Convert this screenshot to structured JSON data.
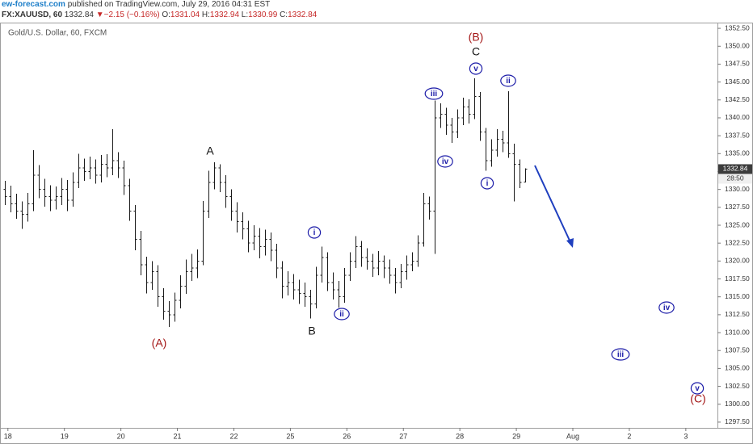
{
  "chart_data": {
    "type": "ohlc",
    "title": "Gold/U.S. Dollar, 60, FXCM",
    "publisher": "ew-forecast.com",
    "published": "published on TradingView.com, July 29, 2016 04:31 EST",
    "symbol": "FX:XAUUSD, 60",
    "change": "−2.15 (−0.16%)",
    "ohlc_labels": [
      "O:",
      "H:",
      "L:",
      "C:"
    ],
    "countdown": "28:50",
    "color": "#1a1a1a",
    "x": [
      -0.05,
      0.05,
      0.15,
      0.25,
      0.35,
      0.45,
      0.55,
      0.65,
      0.75,
      0.85,
      0.95,
      1.05,
      1.15,
      1.25,
      1.35,
      1.45,
      1.55,
      1.65,
      1.75,
      1.85,
      1.95,
      2.05,
      2.15,
      2.25,
      2.35,
      2.45,
      2.55,
      2.65,
      2.75,
      2.85,
      2.95,
      3.05,
      3.15,
      3.25,
      3.35,
      3.45,
      3.55,
      3.65,
      3.75,
      3.85,
      3.95,
      4.05,
      4.15,
      4.25,
      4.35,
      4.45,
      4.55,
      4.65,
      4.75,
      4.85,
      4.95,
      5.05,
      5.15,
      5.25,
      5.35,
      5.45,
      5.55,
      5.65,
      5.75,
      5.85,
      5.95,
      6.05,
      6.15,
      6.25,
      6.35,
      6.45,
      6.55,
      6.65,
      6.75,
      6.85,
      6.95,
      7.05,
      7.15,
      7.25,
      7.35,
      7.45,
      7.55,
      7.65,
      7.75,
      7.85,
      7.95,
      8.05,
      8.15,
      8.25,
      8.35,
      8.45,
      8.55,
      8.65,
      8.75,
      8.85,
      8.95,
      9.05,
      9.15
    ],
    "open": [
      1330,
      1329,
      1328,
      1327,
      1326.5,
      1328,
      1332,
      1330,
      1329,
      1328.5,
      1329,
      1330,
      1328.5,
      1331,
      1333,
      1332.5,
      1333,
      1332,
      1333.5,
      1333,
      1334,
      1333,
      1330.5,
      1327,
      1323,
      1319.5,
      1317,
      1318.5,
      1315,
      1313,
      1312.5,
      1314.5,
      1316.5,
      1318.5,
      1319,
      1320,
      1327,
      1331,
      1333,
      1331,
      1329,
      1327,
      1325.5,
      1324.5,
      1322.5,
      1323.5,
      1322,
      1323,
      1321.5,
      1319,
      1316.5,
      1317,
      1316,
      1315.5,
      1315,
      1314,
      1318,
      1320.5,
      1317,
      1316,
      1315,
      1318,
      1320,
      1322,
      1320.5,
      1320,
      1319,
      1320,
      1319,
      1318,
      1317,
      1318.5,
      1319.5,
      1320,
      1322.5,
      1328,
      1327,
      1340,
      1340.5,
      1339,
      1338,
      1340,
      1341.5,
      1340.5,
      1343,
      1338,
      1334,
      1335.5,
      1337,
      1336.5,
      1335,
      1333.5,
      1331.04
    ],
    "high": [
      1331.2,
      1330.5,
      1329.4,
      1328.3,
      1329.5,
      1335.5,
      1333.4,
      1331.5,
      1330.6,
      1330.4,
      1331.6,
      1331.3,
      1332.4,
      1335,
      1334.3,
      1334.6,
      1334.2,
      1334.8,
      1334.9,
      1338.4,
      1335.2,
      1334,
      1331.5,
      1327.8,
      1324.2,
      1320.6,
      1320,
      1319.4,
      1316.2,
      1314.4,
      1315.6,
      1318,
      1320.2,
      1321,
      1321.6,
      1328.4,
      1332.6,
      1333.8,
      1333.5,
      1332,
      1330,
      1328.2,
      1326.8,
      1325.6,
      1325,
      1324.6,
      1324.4,
      1324,
      1322.4,
      1320,
      1318.6,
      1318.2,
      1317.4,
      1317,
      1316,
      1319.2,
      1322,
      1321.2,
      1318.4,
      1317.2,
      1319,
      1321.2,
      1323.5,
      1322.8,
      1321.8,
      1321,
      1321.4,
      1320.8,
      1320.2,
      1319,
      1319.6,
      1320.8,
      1321.2,
      1323.6,
      1329.5,
      1329,
      1342.4,
      1342,
      1341.4,
      1340,
      1341.2,
      1342.8,
      1342.6,
      1345.5,
      1343.6,
      1338.6,
      1337,
      1338.4,
      1338.2,
      1343.7,
      1336.4,
      1334.2,
      1332.94
    ],
    "low": [
      1327.8,
      1326.8,
      1325.9,
      1324.5,
      1325.5,
      1327,
      1328.8,
      1327.6,
      1327,
      1327.2,
      1327.8,
      1327,
      1327.6,
      1330.2,
      1331.2,
      1331.4,
      1330.8,
      1331,
      1331.7,
      1332,
      1331.6,
      1329.2,
      1325.6,
      1321.5,
      1318,
      1315.5,
      1316,
      1313.6,
      1311.8,
      1310.8,
      1311.5,
      1313.4,
      1315.4,
      1317.2,
      1317.6,
      1319.4,
      1326,
      1330,
      1329.6,
      1327.4,
      1325.6,
      1324,
      1323,
      1321.2,
      1321.5,
      1320.4,
      1320.8,
      1320,
      1317.6,
      1314.8,
      1315.2,
      1314.6,
      1314,
      1313.6,
      1312,
      1313.4,
      1317,
      1315.8,
      1314.6,
      1313.5,
      1314.2,
      1317.2,
      1319,
      1319.2,
      1318.8,
      1317.8,
      1318,
      1317.6,
      1316.8,
      1315.5,
      1316.2,
      1317.4,
      1318.6,
      1319.2,
      1322,
      1325.8,
      1321,
      1338.6,
      1337.6,
      1336.5,
      1337.2,
      1339,
      1339.2,
      1339.8,
      1336.8,
      1332.6,
      1333.2,
      1334.6,
      1335.2,
      1334.4,
      1328.3,
      1330.2,
      1330.99
    ],
    "close": [
      1329,
      1328,
      1327,
      1326.5,
      1328,
      1332,
      1330,
      1329,
      1328.5,
      1329,
      1330,
      1328.5,
      1331,
      1333,
      1332.5,
      1333,
      1332,
      1333.5,
      1333,
      1334,
      1333,
      1330.5,
      1327,
      1323,
      1319.5,
      1317,
      1318.5,
      1315,
      1313,
      1312.5,
      1314.5,
      1316.5,
      1318.5,
      1319,
      1320,
      1327,
      1331,
      1333,
      1331,
      1329,
      1327,
      1325.5,
      1324.5,
      1322.5,
      1323.5,
      1322,
      1323,
      1321.5,
      1319,
      1316.5,
      1317,
      1316,
      1315.5,
      1315,
      1314,
      1318,
      1320.5,
      1317,
      1316,
      1315,
      1318,
      1320,
      1322,
      1320.5,
      1320,
      1319,
      1320,
      1319,
      1318,
      1317,
      1318.5,
      1319.5,
      1320,
      1322.5,
      1328,
      1327,
      1340,
      1340.5,
      1339,
      1338,
      1340,
      1341.5,
      1340.5,
      1343,
      1338,
      1334,
      1335.5,
      1337,
      1336.5,
      1335,
      1333.5,
      1331,
      1332.84
    ],
    "xlim": [
      -0.14,
      12.56
    ],
    "ylim": [
      1296.7,
      1353.3
    ],
    "xticks": [
      {
        "value": 0,
        "label": "18"
      },
      {
        "value": 1,
        "label": "19"
      },
      {
        "value": 2,
        "label": "20"
      },
      {
        "value": 3,
        "label": "21"
      },
      {
        "value": 4,
        "label": "22"
      },
      {
        "value": 5,
        "label": "25"
      },
      {
        "value": 6,
        "label": "26"
      },
      {
        "value": 7,
        "label": "27"
      },
      {
        "value": 8,
        "label": "28"
      },
      {
        "value": 9,
        "label": "29"
      },
      {
        "value": 10,
        "label": "Aug"
      },
      {
        "value": 11,
        "label": "2"
      },
      {
        "value": 12,
        "label": "3"
      }
    ],
    "yticks": [
      {
        "value": 1297.5,
        "label": "1297.50"
      },
      {
        "value": 1300,
        "label": "1300.00"
      },
      {
        "value": 1302.5,
        "label": "1302.50"
      },
      {
        "value": 1305,
        "label": "1305.00"
      },
      {
        "value": 1307.5,
        "label": "1307.50"
      },
      {
        "value": 1310,
        "label": "1310.00"
      },
      {
        "value": 1312.5,
        "label": "1312.50"
      },
      {
        "value": 1315,
        "label": "1315.00"
      },
      {
        "value": 1317.5,
        "label": "1317.50"
      },
      {
        "value": 1320,
        "label": "1320.00"
      },
      {
        "value": 1322.5,
        "label": "1322.50"
      },
      {
        "value": 1325,
        "label": "1325.00"
      },
      {
        "value": 1327.5,
        "label": "1327.50"
      },
      {
        "value": 1330,
        "label": "1330.00"
      },
      {
        "value": 1332.5,
        "label": "1332.50"
      },
      {
        "value": 1335,
        "label": "1335.00"
      },
      {
        "value": 1337.5,
        "label": "1337.50"
      },
      {
        "value": 1340,
        "label": "1340.00"
      },
      {
        "value": 1342.5,
        "label": "1342.50"
      },
      {
        "value": 1345,
        "label": "1345.00"
      },
      {
        "value": 1347.5,
        "label": "1347.50"
      },
      {
        "value": 1350,
        "label": "1350.00"
      },
      {
        "value": 1352.5,
        "label": "1352.50"
      }
    ],
    "grid": false,
    "annotations": [
      {
        "text": "(A)",
        "color": "#a31515",
        "shape": "none"
      },
      {
        "text": "A",
        "color": "#111111",
        "shape": "none"
      },
      {
        "text": "B",
        "color": "#111111",
        "shape": "none"
      },
      {
        "text": "(B)",
        "color": "#a31515",
        "shape": "none"
      },
      {
        "text": "C",
        "color": "#111111",
        "shape": "none"
      },
      {
        "text": "(C)",
        "color": "#a31515",
        "shape": "none"
      },
      {
        "text": "i",
        "color": "#1c1ca8",
        "shape": "circle"
      },
      {
        "text": "ii",
        "color": "#1c1ca8",
        "shape": "circle"
      },
      {
        "text": "iii",
        "color": "#1c1ca8",
        "shape": "circle"
      },
      {
        "text": "iv",
        "color": "#1c1ca8",
        "shape": "circle"
      },
      {
        "text": "v",
        "color": "#1c1ca8",
        "shape": "circle"
      },
      {
        "text": "i",
        "color": "#1c1ca8",
        "shape": "circle"
      },
      {
        "text": "ii",
        "color": "#1c1ca8",
        "shape": "circle"
      },
      {
        "text": "iii",
        "color": "#1c1ca8",
        "shape": "circle"
      },
      {
        "text": "iv",
        "color": "#1c1ca8",
        "shape": "circle"
      },
      {
        "text": "v",
        "color": "#1c1ca8",
        "shape": "circle"
      }
    ]
  }
}
